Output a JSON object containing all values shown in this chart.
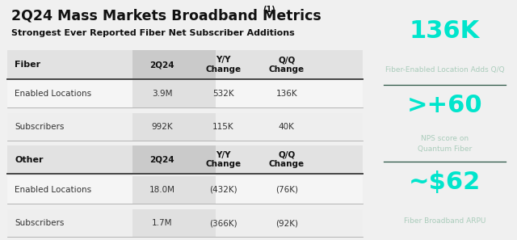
{
  "title": "2Q24 Mass Markets Broadband Metrics",
  "title_superscript": "(1)",
  "subtitle": "Strongest Ever Reported Fiber Net Subscriber Additions",
  "bg_color": "#f0f0f0",
  "right_panel_bg": "#0d2b2b",
  "right_panel_accent": "#00e5cc",
  "fiber_section": {
    "header_label": "Fiber",
    "col1": "2Q24",
    "col2": "Y/Y\nChange",
    "col3": "Q/Q\nChange",
    "rows": [
      {
        "label": "Enabled Locations",
        "v1": "3.9M",
        "v2": "532K",
        "v3": "136K"
      },
      {
        "label": "Subscribers",
        "v1": "992K",
        "v2": "115K",
        "v3": "40K"
      }
    ]
  },
  "other_section": {
    "header_label": "Other",
    "col1": "2Q24",
    "col2": "Y/Y\nChange",
    "col3": "Q/Q\nChange",
    "rows": [
      {
        "label": "Enabled Locations",
        "v1": "18.0M",
        "v2": "(432K)",
        "v3": "(76K)"
      },
      {
        "label": "Subscribers",
        "v1": "1.7M",
        "v2": "(366K)",
        "v3": "(92K)"
      }
    ]
  },
  "metrics": [
    {
      "value": "136K",
      "label": "Fiber-Enabled Location Adds Q/Q"
    },
    {
      "value": ">+60",
      "label": "NPS score on\nQuantum Fiber"
    },
    {
      "value": "~$62",
      "label": "Fiber Broadband ARPU"
    }
  ]
}
